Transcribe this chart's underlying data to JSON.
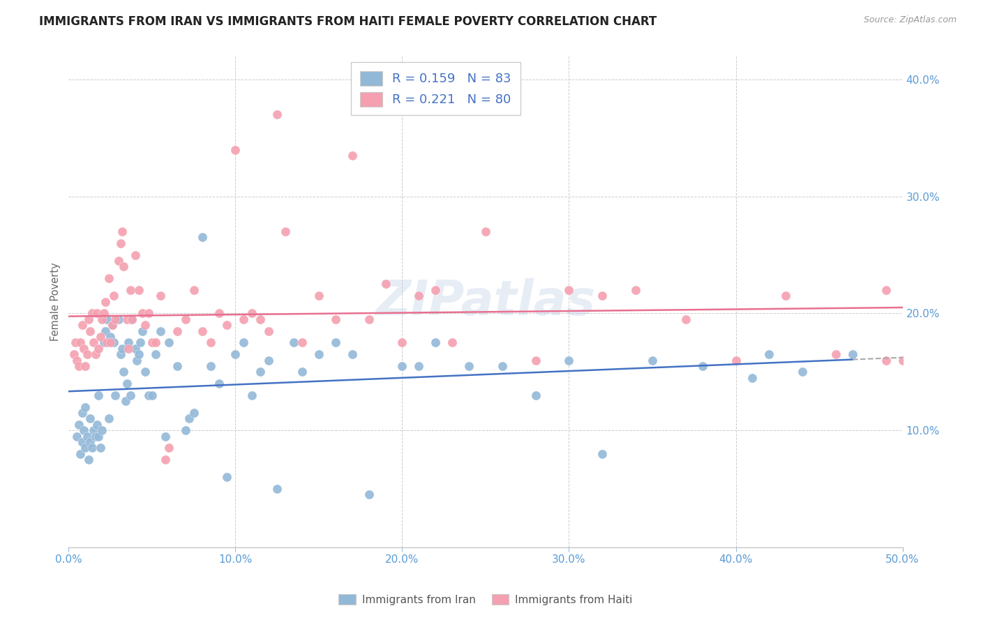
{
  "title": "IMMIGRANTS FROM IRAN VS IMMIGRANTS FROM HAITI FEMALE POVERTY CORRELATION CHART",
  "source": "Source: ZipAtlas.com",
  "ylabel": "Female Poverty",
  "xlim": [
    0,
    0.5
  ],
  "ylim": [
    0,
    0.42
  ],
  "xticks": [
    0.0,
    0.1,
    0.2,
    0.3,
    0.4,
    0.5
  ],
  "yticks": [
    0.0,
    0.1,
    0.2,
    0.3,
    0.4
  ],
  "xtick_labels": [
    "0.0%",
    "10.0%",
    "20.0%",
    "30.0%",
    "40.0%",
    "50.0%"
  ],
  "ytick_labels_right": [
    "",
    "10.0%",
    "20.0%",
    "30.0%",
    "40.0%"
  ],
  "iran_color": "#92b8d8",
  "haiti_color": "#f4a0b0",
  "iran_line_color": "#4472c4",
  "haiti_line_color": "#e87090",
  "iran_dot_edge": "#aaccee",
  "haiti_dot_edge": "#f8c0cc",
  "watermark": "ZIPatlas",
  "background_color": "#ffffff",
  "grid_color": "#cccccc",
  "legend_text_color": "#333333",
  "legend_value_color": "#4472c4",
  "axis_color": "#5b9bd5",
  "iran_x": [
    0.005,
    0.006,
    0.007,
    0.008,
    0.008,
    0.009,
    0.01,
    0.01,
    0.011,
    0.012,
    0.013,
    0.013,
    0.014,
    0.015,
    0.016,
    0.017,
    0.018,
    0.018,
    0.019,
    0.02,
    0.021,
    0.022,
    0.023,
    0.024,
    0.025,
    0.026,
    0.027,
    0.028,
    0.03,
    0.031,
    0.032,
    0.033,
    0.034,
    0.035,
    0.036,
    0.037,
    0.038,
    0.04,
    0.041,
    0.042,
    0.043,
    0.044,
    0.046,
    0.048,
    0.05,
    0.052,
    0.055,
    0.058,
    0.06,
    0.065,
    0.07,
    0.072,
    0.075,
    0.08,
    0.085,
    0.09,
    0.095,
    0.1,
    0.105,
    0.11,
    0.115,
    0.12,
    0.125,
    0.135,
    0.14,
    0.15,
    0.16,
    0.17,
    0.18,
    0.2,
    0.21,
    0.22,
    0.24,
    0.26,
    0.28,
    0.3,
    0.32,
    0.35,
    0.38,
    0.41,
    0.42,
    0.44,
    0.47
  ],
  "iran_y": [
    0.095,
    0.105,
    0.08,
    0.09,
    0.115,
    0.1,
    0.085,
    0.12,
    0.095,
    0.075,
    0.11,
    0.09,
    0.085,
    0.1,
    0.095,
    0.105,
    0.095,
    0.13,
    0.085,
    0.1,
    0.175,
    0.185,
    0.195,
    0.11,
    0.18,
    0.19,
    0.175,
    0.13,
    0.195,
    0.165,
    0.17,
    0.15,
    0.125,
    0.14,
    0.175,
    0.13,
    0.195,
    0.17,
    0.16,
    0.165,
    0.175,
    0.185,
    0.15,
    0.13,
    0.13,
    0.165,
    0.185,
    0.095,
    0.175,
    0.155,
    0.1,
    0.11,
    0.115,
    0.265,
    0.155,
    0.14,
    0.06,
    0.165,
    0.175,
    0.13,
    0.15,
    0.16,
    0.05,
    0.175,
    0.15,
    0.165,
    0.175,
    0.165,
    0.045,
    0.155,
    0.155,
    0.175,
    0.155,
    0.155,
    0.13,
    0.16,
    0.08,
    0.16,
    0.155,
    0.145,
    0.165,
    0.15,
    0.165
  ],
  "haiti_x": [
    0.003,
    0.004,
    0.005,
    0.006,
    0.007,
    0.008,
    0.009,
    0.01,
    0.011,
    0.012,
    0.013,
    0.014,
    0.015,
    0.016,
    0.017,
    0.018,
    0.019,
    0.02,
    0.021,
    0.022,
    0.023,
    0.024,
    0.025,
    0.026,
    0.027,
    0.028,
    0.03,
    0.031,
    0.032,
    0.033,
    0.035,
    0.036,
    0.037,
    0.038,
    0.04,
    0.042,
    0.044,
    0.046,
    0.048,
    0.05,
    0.052,
    0.055,
    0.058,
    0.06,
    0.065,
    0.07,
    0.075,
    0.08,
    0.085,
    0.09,
    0.095,
    0.1,
    0.105,
    0.11,
    0.115,
    0.12,
    0.125,
    0.13,
    0.14,
    0.15,
    0.16,
    0.17,
    0.18,
    0.19,
    0.2,
    0.21,
    0.22,
    0.23,
    0.25,
    0.28,
    0.3,
    0.32,
    0.34,
    0.37,
    0.4,
    0.43,
    0.46,
    0.49,
    0.5,
    0.49
  ],
  "haiti_y": [
    0.165,
    0.175,
    0.16,
    0.155,
    0.175,
    0.19,
    0.17,
    0.155,
    0.165,
    0.195,
    0.185,
    0.2,
    0.175,
    0.165,
    0.2,
    0.17,
    0.18,
    0.195,
    0.2,
    0.21,
    0.175,
    0.23,
    0.175,
    0.19,
    0.215,
    0.195,
    0.245,
    0.26,
    0.27,
    0.24,
    0.195,
    0.17,
    0.22,
    0.195,
    0.25,
    0.22,
    0.2,
    0.19,
    0.2,
    0.175,
    0.175,
    0.215,
    0.075,
    0.085,
    0.185,
    0.195,
    0.22,
    0.185,
    0.175,
    0.2,
    0.19,
    0.34,
    0.195,
    0.2,
    0.195,
    0.185,
    0.37,
    0.27,
    0.175,
    0.215,
    0.195,
    0.335,
    0.195,
    0.225,
    0.175,
    0.215,
    0.22,
    0.175,
    0.27,
    0.16,
    0.22,
    0.215,
    0.22,
    0.195,
    0.16,
    0.215,
    0.165,
    0.22,
    0.16,
    0.16
  ]
}
